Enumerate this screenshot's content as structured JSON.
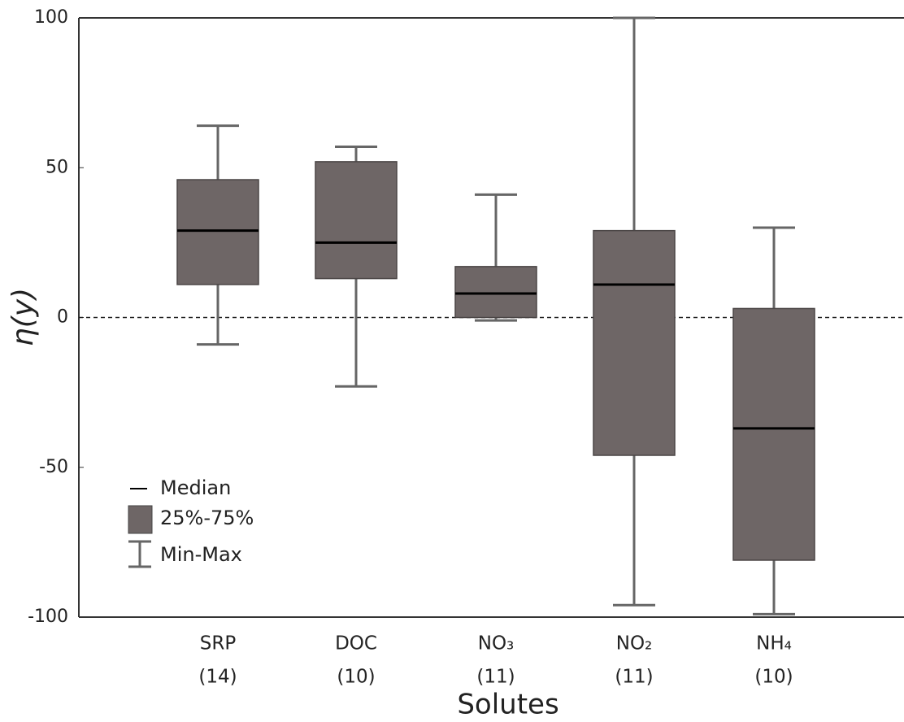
{
  "chart_data": {
    "type": "box",
    "y_label": "η(y)",
    "x_label": "Solutes",
    "categories": [
      "SRP",
      "DOC",
      "NO₃",
      "NO₂",
      "NH₄"
    ],
    "counts": [
      "(14)",
      "(10)",
      "(11)",
      "(11)",
      "(10)"
    ],
    "min": [
      -9,
      -23,
      -1,
      -96,
      -99
    ],
    "q1": [
      11,
      13,
      0,
      -46,
      -81
    ],
    "median": [
      29,
      25,
      8,
      11,
      -37
    ],
    "q3": [
      46,
      52,
      17,
      29,
      3
    ],
    "max": [
      64,
      57,
      41,
      100,
      30
    ],
    "color": "#6e6666",
    "median_color": "#000000",
    "reference_line": 0,
    "ylim": [
      -100,
      100
    ],
    "yticks": [
      100,
      50,
      0,
      -50,
      -100
    ],
    "legend": {
      "median": "Median",
      "box": "25%-75%",
      "whisker": "Min-Max"
    }
  }
}
